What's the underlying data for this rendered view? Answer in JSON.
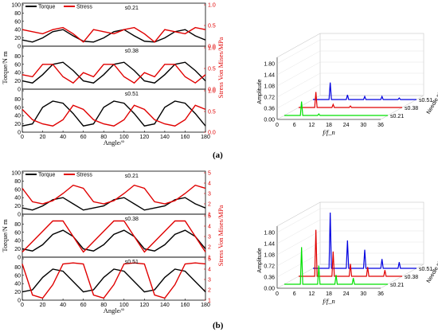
{
  "captions": [
    "(a)",
    "(b)"
  ],
  "chart_data": [
    {
      "type": "line",
      "panel": "a",
      "legend": [
        "Torque",
        "Stress"
      ],
      "xlabel": "Angle/°",
      "ylabel_left": "Torque/N m",
      "ylabel_right": "Stress Von Mises/MPa",
      "xlim": [
        0,
        180
      ],
      "xticks": [
        "0",
        "20",
        "40",
        "60",
        "80",
        "100",
        "120",
        "140",
        "160",
        "180"
      ],
      "series_colors": {
        "torque": "#000000",
        "stress": "#e00000"
      },
      "subplots": [
        {
          "label": "s0.21",
          "ylim": [
            0,
            100
          ],
          "yticks": [
            "0",
            "20",
            "40",
            "60",
            "80",
            "100"
          ],
          "ylim_right": [
            0,
            1.0
          ],
          "yticks_right": [
            "0.0",
            "0.5",
            "1.0"
          ],
          "x": [
            0,
            10,
            20,
            30,
            40,
            50,
            60,
            70,
            80,
            90,
            100,
            110,
            120,
            130,
            140,
            150,
            160,
            170,
            180
          ],
          "torque": [
            15,
            10,
            20,
            35,
            40,
            25,
            12,
            10,
            20,
            35,
            40,
            25,
            12,
            10,
            20,
            35,
            40,
            25,
            15
          ],
          "stress": [
            0.4,
            0.35,
            0.3,
            0.4,
            0.45,
            0.3,
            0.1,
            0.4,
            0.35,
            0.3,
            0.4,
            0.45,
            0.3,
            0.1,
            0.4,
            0.35,
            0.3,
            0.45,
            0.4
          ]
        },
        {
          "label": "s0.38",
          "ylim": [
            0,
            100
          ],
          "yticks": [
            "0",
            "20",
            "40",
            "60",
            "80",
            "100"
          ],
          "ylim_right": [
            0,
            1.0
          ],
          "yticks_right": [
            "0.0",
            "0.5",
            "1.0"
          ],
          "x": [
            0,
            10,
            20,
            30,
            40,
            50,
            60,
            70,
            80,
            90,
            100,
            110,
            120,
            130,
            140,
            150,
            160,
            170,
            180
          ],
          "torque": [
            20,
            15,
            35,
            60,
            65,
            45,
            20,
            15,
            35,
            60,
            65,
            45,
            20,
            15,
            35,
            60,
            65,
            45,
            20
          ],
          "stress": [
            0.35,
            0.3,
            0.6,
            0.6,
            0.3,
            0.15,
            0.4,
            0.3,
            0.6,
            0.6,
            0.3,
            0.15,
            0.4,
            0.3,
            0.6,
            0.6,
            0.3,
            0.15,
            0.35
          ]
        },
        {
          "label": "s0.51",
          "ylim": [
            0,
            100
          ],
          "yticks": [
            "0",
            "20",
            "40",
            "60",
            "80",
            "100"
          ],
          "ylim_right": [
            0,
            1.0
          ],
          "yticks_right": [
            "0.0",
            "0.5",
            "1.0"
          ],
          "x": [
            0,
            10,
            20,
            30,
            40,
            50,
            60,
            70,
            80,
            90,
            100,
            110,
            120,
            130,
            140,
            150,
            160,
            170,
            180
          ],
          "torque": [
            15,
            20,
            60,
            75,
            70,
            45,
            15,
            20,
            60,
            75,
            70,
            45,
            15,
            20,
            60,
            75,
            70,
            45,
            15
          ],
          "stress": [
            0.55,
            0.3,
            0.2,
            0.15,
            0.3,
            0.65,
            0.55,
            0.3,
            0.2,
            0.15,
            0.3,
            0.65,
            0.55,
            0.3,
            0.2,
            0.15,
            0.3,
            0.65,
            0.55
          ]
        }
      ]
    },
    {
      "type": "waterfall",
      "panel": "a",
      "xlabel": "f/f_n",
      "ylabel": "Amplitude",
      "zlabel": "Needle stroke",
      "xticks": [
        "0",
        "6",
        "12",
        "18",
        "24",
        "30",
        "36"
      ],
      "yticks": [
        "0.00",
        "0.36",
        "0.72",
        "1.08",
        "1.44",
        "1.80"
      ],
      "ylim": [
        0,
        1.8
      ],
      "series": [
        {
          "name": "s0.21",
          "color": "#00e000",
          "peaks": [
            {
              "x": 6,
              "y": 0.45
            },
            {
              "x": 12,
              "y": 0.05
            }
          ]
        },
        {
          "name": "s0.38",
          "color": "#e00000",
          "peaks": [
            {
              "x": 6,
              "y": 0.5
            },
            {
              "x": 12,
              "y": 0.1
            },
            {
              "x": 18,
              "y": 0.05
            }
          ]
        },
        {
          "name": "s0.51",
          "color": "#0000e0",
          "peaks": [
            {
              "x": 6,
              "y": 0.55
            },
            {
              "x": 12,
              "y": 0.15
            },
            {
              "x": 18,
              "y": 0.1
            },
            {
              "x": 24,
              "y": 0.1
            },
            {
              "x": 30,
              "y": 0.05
            }
          ]
        }
      ]
    },
    {
      "type": "line",
      "panel": "b",
      "legend": [
        "Torque",
        "Stress"
      ],
      "xlabel": "Angle/°",
      "ylabel_left": "Torque/N m",
      "ylabel_right": "Stress Von Mises/MPa",
      "xlim": [
        0,
        180
      ],
      "xticks": [
        "0",
        "20",
        "40",
        "60",
        "80",
        "100",
        "120",
        "140",
        "160",
        "180"
      ],
      "series_colors": {
        "torque": "#000000",
        "stress": "#e00000"
      },
      "subplots": [
        {
          "label": "s0.21",
          "ylim": [
            0,
            100
          ],
          "yticks": [
            "0",
            "20",
            "40",
            "60",
            "80",
            "100"
          ],
          "ylim_right": [
            1,
            5
          ],
          "yticks_right": [
            "1",
            "2",
            "3",
            "4",
            "5"
          ],
          "x": [
            0,
            10,
            20,
            30,
            40,
            50,
            60,
            70,
            80,
            90,
            100,
            110,
            120,
            130,
            140,
            150,
            160,
            170,
            180
          ],
          "torque": [
            15,
            10,
            20,
            35,
            40,
            25,
            10,
            15,
            20,
            35,
            40,
            25,
            10,
            15,
            20,
            35,
            40,
            25,
            15
          ],
          "stress": [
            3.5,
            2.2,
            2.0,
            2.3,
            3.0,
            3.8,
            3.5,
            2.2,
            2.0,
            2.3,
            3.0,
            3.8,
            3.5,
            2.2,
            2.0,
            2.3,
            3.0,
            3.8,
            3.5
          ]
        },
        {
          "label": "s0.38",
          "ylim": [
            0,
            100
          ],
          "yticks": [
            "0",
            "20",
            "40",
            "60",
            "80",
            "100"
          ],
          "ylim_right": [
            1,
            5
          ],
          "yticks_right": [
            "1",
            "2",
            "3",
            "4",
            "5"
          ],
          "x": [
            0,
            10,
            20,
            30,
            40,
            50,
            60,
            70,
            80,
            90,
            100,
            110,
            120,
            130,
            140,
            150,
            160,
            170,
            180
          ],
          "torque": [
            20,
            15,
            30,
            55,
            65,
            50,
            20,
            15,
            30,
            55,
            65,
            50,
            20,
            15,
            30,
            55,
            65,
            50,
            20
          ],
          "stress": [
            1.5,
            2.5,
            3.5,
            4.5,
            4.5,
            3.0,
            1.5,
            2.5,
            3.5,
            4.5,
            4.5,
            3.0,
            1.5,
            2.5,
            3.5,
            4.5,
            4.5,
            3.0,
            1.5
          ]
        },
        {
          "label": "s0.51",
          "ylim": [
            0,
            100
          ],
          "yticks": [
            "0",
            "20",
            "40",
            "60",
            "80",
            "100"
          ],
          "ylim_right": [
            1,
            5
          ],
          "yticks_right": [
            "1",
            "2",
            "3",
            "4",
            "5"
          ],
          "x": [
            0,
            10,
            20,
            30,
            40,
            50,
            60,
            70,
            80,
            90,
            100,
            110,
            120,
            130,
            140,
            150,
            160,
            170,
            180
          ],
          "torque": [
            20,
            25,
            55,
            75,
            70,
            45,
            20,
            25,
            55,
            75,
            70,
            45,
            20,
            25,
            55,
            75,
            70,
            45,
            20
          ],
          "stress": [
            4.5,
            1.5,
            1.2,
            2.5,
            4.5,
            4.6,
            4.5,
            1.5,
            1.2,
            2.5,
            4.5,
            4.6,
            4.5,
            1.5,
            1.2,
            2.5,
            4.5,
            4.6,
            4.5
          ]
        }
      ]
    },
    {
      "type": "waterfall",
      "panel": "b",
      "xlabel": "f/f_n",
      "ylabel": "Amplitude",
      "zlabel": "Needle stroke",
      "xticks": [
        "0",
        "6",
        "12",
        "18",
        "24",
        "30",
        "36"
      ],
      "yticks": [
        "0.00",
        "0.36",
        "0.72",
        "1.08",
        "1.44",
        "1.80"
      ],
      "ylim": [
        0,
        1.8
      ],
      "series": [
        {
          "name": "s0.21",
          "color": "#00e000",
          "peaks": [
            {
              "x": 6,
              "y": 1.2
            },
            {
              "x": 12,
              "y": 0.6
            },
            {
              "x": 18,
              "y": 0.3
            },
            {
              "x": 24,
              "y": 0.2
            }
          ]
        },
        {
          "name": "s0.38",
          "color": "#e00000",
          "peaks": [
            {
              "x": 6,
              "y": 1.5
            },
            {
              "x": 12,
              "y": 0.8
            },
            {
              "x": 18,
              "y": 0.4
            },
            {
              "x": 24,
              "y": 0.3
            },
            {
              "x": 30,
              "y": 0.2
            }
          ]
        },
        {
          "name": "s0.51",
          "color": "#0000e0",
          "peaks": [
            {
              "x": 6,
              "y": 1.8
            },
            {
              "x": 12,
              "y": 0.9
            },
            {
              "x": 18,
              "y": 0.6
            },
            {
              "x": 24,
              "y": 0.3
            },
            {
              "x": 30,
              "y": 0.2
            }
          ]
        }
      ]
    }
  ]
}
